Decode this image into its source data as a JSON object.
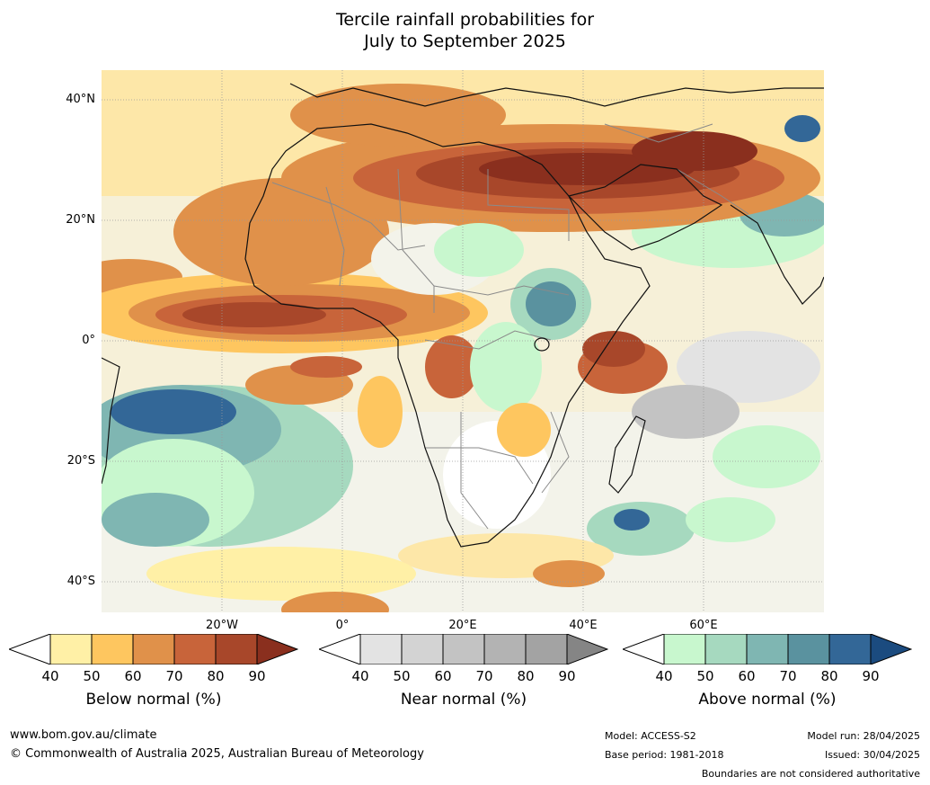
{
  "title": {
    "line1": "Tercile rainfall probabilities for",
    "line2": "July to September 2025"
  },
  "map": {
    "lat_labels": [
      "40°N",
      "20°N",
      "0°",
      "20°S",
      "40°S"
    ],
    "lon_labels": [
      "20°W",
      "0°",
      "20°E",
      "40°E",
      "60°E"
    ],
    "colors": {
      "ocean_base": "#f4efdc",
      "land_base": "#fbe9b8",
      "coast": "#111111",
      "border": "#8a8a8a",
      "grid": "#9a9a9a"
    }
  },
  "legend": {
    "below": {
      "title": "Below normal (%)",
      "ticks": [
        "40",
        "50",
        "60",
        "70",
        "80",
        "90"
      ],
      "colors": [
        "#ffffff",
        "#fff0a6",
        "#fec65f",
        "#e0914a",
        "#c8643a",
        "#a8472a",
        "#8a2f1e"
      ]
    },
    "near": {
      "title": "Near normal (%)",
      "ticks": [
        "40",
        "50",
        "60",
        "70",
        "80",
        "90"
      ],
      "colors": [
        "#ffffff",
        "#e3e3e3",
        "#d3d3d3",
        "#c3c3c3",
        "#b3b3b3",
        "#a3a3a3",
        "#858585"
      ]
    },
    "above": {
      "title": "Above normal (%)",
      "ticks": [
        "40",
        "50",
        "60",
        "70",
        "80",
        "90"
      ],
      "colors": [
        "#ffffff",
        "#c8f7ce",
        "#a6d9bf",
        "#7fb6b2",
        "#5a929f",
        "#336797",
        "#1b4b7f"
      ]
    }
  },
  "footer": {
    "website": "www.bom.gov.au/climate",
    "copyright": "© Commonwealth of Australia 2025, Australian Bureau of Meteorology",
    "model": "Model: ACCESS-S2",
    "base_period": "Base period: 1981-2018",
    "model_run": "Model run: 28/04/2025",
    "issued": "Issued: 30/04/2025",
    "disclaimer": "Boundaries are not considered authoritative"
  }
}
